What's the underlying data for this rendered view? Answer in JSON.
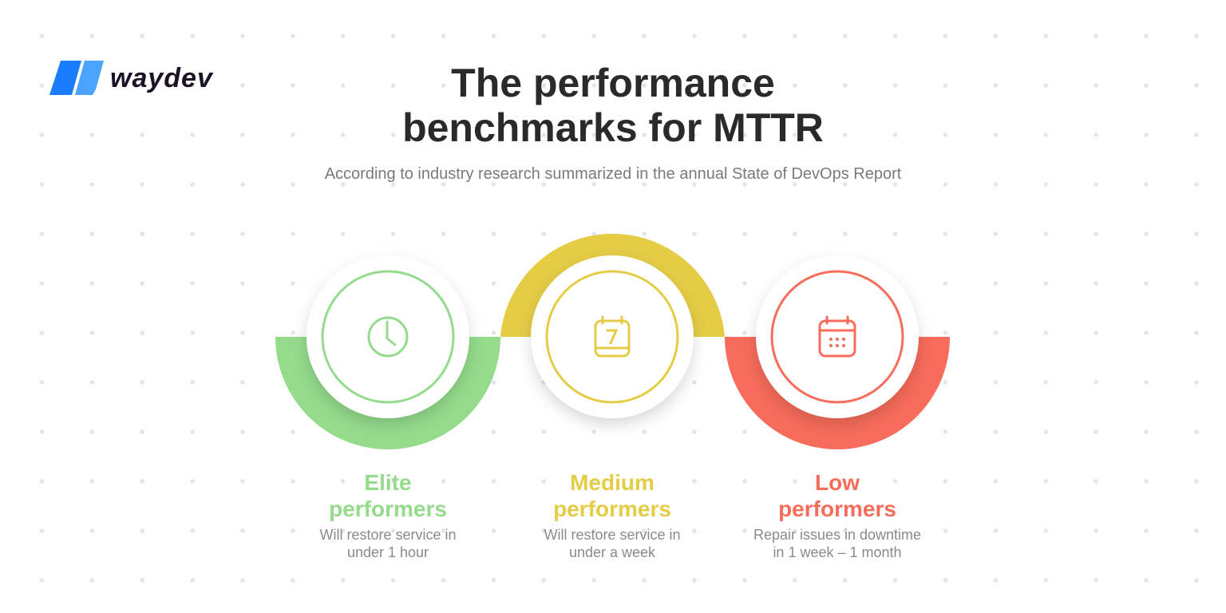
{
  "logo": {
    "text": "waydev",
    "color": "#1a7cff"
  },
  "title": {
    "line1": "The performance",
    "line2": "benchmarks for MTTR"
  },
  "subtitle": "According to industry research summarized in the annual State of DevOps Report",
  "tiers": [
    {
      "label1": "Elite",
      "label2": "performers",
      "desc1": "Will restore service in",
      "desc2": "under 1 hour",
      "color": "#94db8c",
      "icon": "clock-icon"
    },
    {
      "label1": "Medium",
      "label2": "performers",
      "desc1": "Will restore service in",
      "desc2": "under a week",
      "color": "#e4cc45",
      "icon": "calendar-7-icon"
    },
    {
      "label1": "Low",
      "label2": "performers",
      "desc1": "Repair issues in downtime",
      "desc2": "in 1 week – 1 month",
      "color": "#f76c5a",
      "icon": "calendar-icon"
    }
  ]
}
